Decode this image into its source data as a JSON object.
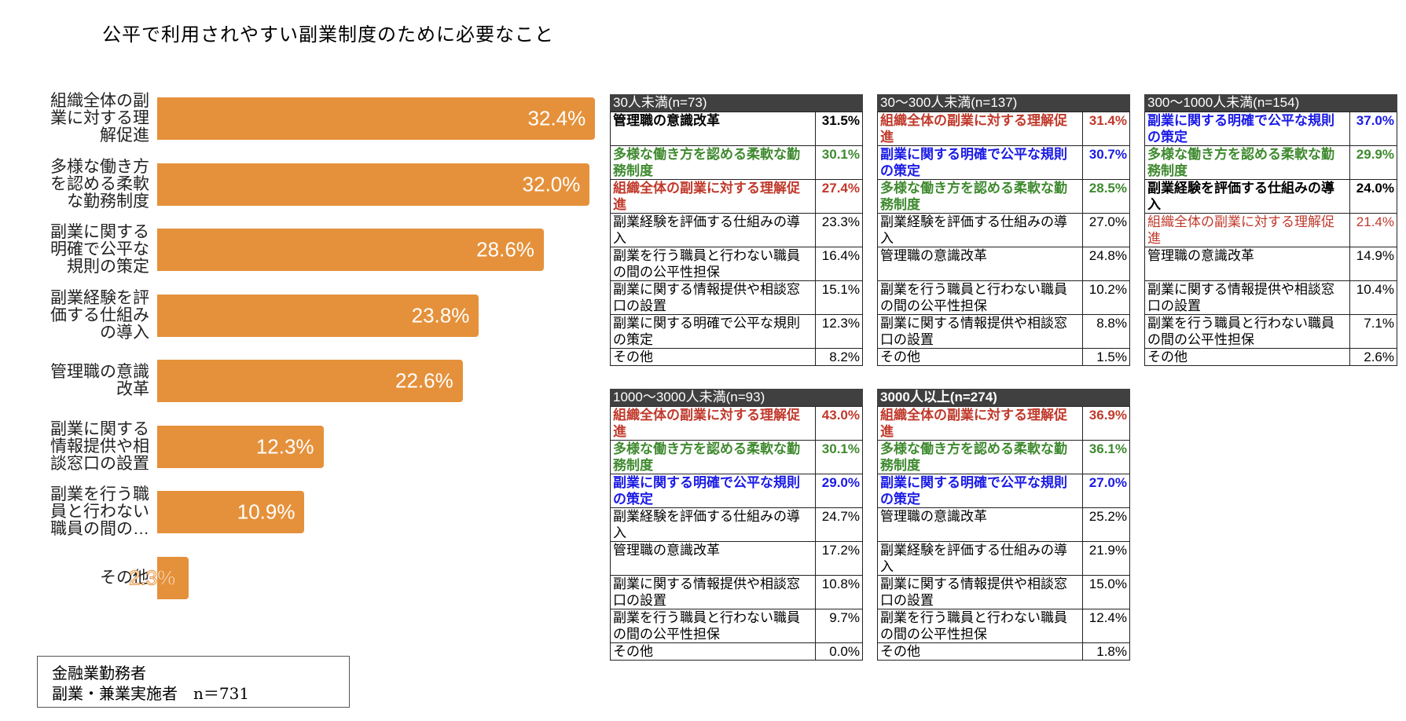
{
  "title": "公平で利用されやすい副業制度のために必要なこと",
  "legend": {
    "line1": "金融業勤務者",
    "line2": "副業・兼業実施者　n＝731"
  },
  "colors": {
    "bar": "#e5913b",
    "header_bg": "#404040",
    "red": "#c0392b",
    "green": "#3f8a2f",
    "blue": "#1a1ae6"
  },
  "chart_data": {
    "type": "bar",
    "orientation": "horizontal",
    "title": "公平で利用されやすい副業制度のために必要なこと",
    "categories": [
      "組織全体の副業に対する理解促進",
      "多様な働き方を認める柔軟な勤務制度",
      "副業に関する明確で公平な規則の策定",
      "副業経験を評価する仕組みの導入",
      "管理職の意識改革",
      "副業に関する情報提供や相談窓口の設置",
      "副業を行う職員と行わない職員の間の…",
      "その他"
    ],
    "values": [
      32.4,
      32.0,
      28.6,
      23.8,
      22.6,
      12.3,
      10.9,
      2.3
    ],
    "value_labels": [
      "32.4%",
      "32.0%",
      "28.6%",
      "23.8%",
      "22.6%",
      "12.3%",
      "10.9%",
      "2.3%"
    ],
    "axis_labels": [
      "組織全体の副業に対する理解促進",
      "多様な働き方を認める柔軟な勤務制度",
      "副業に関する明確で公平な規則の策定",
      "副業経験を評価する仕組みの導入",
      "管理職の意識改革",
      "副業に関する情報提供や相談窓口の設置",
      "副業を行う職員と行わない職員の間の…",
      "その他"
    ],
    "xlabel": "",
    "ylabel": "",
    "grid": false,
    "legend": "金融業勤務者 副業・兼業実施者 n＝731",
    "unit": "%",
    "tables": [
      {
        "header": "30人未満(n=73)",
        "rows": [
          {
            "label": "管理職の意識改革",
            "value": "31.5%",
            "style": "black-bold"
          },
          {
            "label": "多様な働き方を認める柔軟な勤務制度",
            "value": "30.1%",
            "style": "green"
          },
          {
            "label": "組織全体の副業に対する理解促進",
            "value": "27.4%",
            "style": "red"
          },
          {
            "label": "副業経験を評価する仕組みの導入",
            "value": "23.3%",
            "style": "normal"
          },
          {
            "label": "副業を行う職員と行わない職員の間の公平性担保",
            "value": "16.4%",
            "style": "normal"
          },
          {
            "label": "副業に関する情報提供や相談窓口の設置",
            "value": "15.1%",
            "style": "normal"
          },
          {
            "label": "副業に関する明確で公平な規則の策定",
            "value": "12.3%",
            "style": "normal"
          },
          {
            "label": "その他",
            "value": "8.2%",
            "style": "normal"
          }
        ]
      },
      {
        "header": "30〜300人未満(n=137)",
        "rows": [
          {
            "label": "組織全体の副業に対する理解促進",
            "value": "31.4%",
            "style": "red"
          },
          {
            "label": "副業に関する明確で公平な規則の策定",
            "value": "30.7%",
            "style": "blue"
          },
          {
            "label": "多様な働き方を認める柔軟な勤務制度",
            "value": "28.5%",
            "style": "green"
          },
          {
            "label": "副業経験を評価する仕組みの導入",
            "value": "27.0%",
            "style": "normal"
          },
          {
            "label": "管理職の意識改革",
            "value": "24.8%",
            "style": "normal"
          },
          {
            "label": "副業を行う職員と行わない職員の間の公平性担保",
            "value": "10.2%",
            "style": "normal"
          },
          {
            "label": "副業に関する情報提供や相談窓口の設置",
            "value": "8.8%",
            "style": "normal"
          },
          {
            "label": "その他",
            "value": "1.5%",
            "style": "normal"
          }
        ]
      },
      {
        "header": "300〜1000人未満(n=154)",
        "rows": [
          {
            "label": "副業に関する明確で公平な規則の策定",
            "value": "37.0%",
            "style": "blue"
          },
          {
            "label": "多様な働き方を認める柔軟な勤務制度",
            "value": "29.9%",
            "style": "green"
          },
          {
            "label": "副業経験を評価する仕組みの導入",
            "value": "24.0%",
            "style": "black-bold"
          },
          {
            "label": "組織全体の副業に対する理解促進",
            "value": "21.4%",
            "style": "red-normal"
          },
          {
            "label": "管理職の意識改革",
            "value": "14.9%",
            "style": "normal"
          },
          {
            "label": "副業に関する情報提供や相談窓口の設置",
            "value": "10.4%",
            "style": "normal"
          },
          {
            "label": "副業を行う職員と行わない職員の間の公平性担保",
            "value": "7.1%",
            "style": "normal"
          },
          {
            "label": "その他",
            "value": "2.6%",
            "style": "normal"
          }
        ]
      },
      {
        "header": "1000〜3000人未満(n=93)",
        "rows": [
          {
            "label": "組織全体の副業に対する理解促進",
            "value": "43.0%",
            "style": "red"
          },
          {
            "label": "多様な働き方を認める柔軟な勤務制度",
            "value": "30.1%",
            "style": "green"
          },
          {
            "label": "副業に関する明確で公平な規則の策定",
            "value": "29.0%",
            "style": "blue"
          },
          {
            "label": "副業経験を評価する仕組みの導入",
            "value": "24.7%",
            "style": "normal"
          },
          {
            "label": "管理職の意識改革",
            "value": "17.2%",
            "style": "normal"
          },
          {
            "label": "副業に関する情報提供や相談窓口の設置",
            "value": "10.8%",
            "style": "normal"
          },
          {
            "label": "副業を行う職員と行わない職員の間の公平性担保",
            "value": "9.7%",
            "style": "normal"
          },
          {
            "label": "その他",
            "value": "0.0%",
            "style": "normal"
          }
        ]
      },
      {
        "header": "3000人以上(n=274)",
        "rows": [
          {
            "label": "組織全体の副業に対する理解促進",
            "value": "36.9%",
            "style": "red"
          },
          {
            "label": "多様な働き方を認める柔軟な勤務制度",
            "value": "36.1%",
            "style": "green"
          },
          {
            "label": "副業に関する明確で公平な規則の策定",
            "value": "27.0%",
            "style": "blue"
          },
          {
            "label": "管理職の意識改革",
            "value": "25.2%",
            "style": "normal"
          },
          {
            "label": "副業経験を評価する仕組みの導入",
            "value": "21.9%",
            "style": "normal"
          },
          {
            "label": "副業に関する情報提供や相談窓口の設置",
            "value": "15.0%",
            "style": "normal"
          },
          {
            "label": "副業を行う職員と行わない職員の間の公平性担保",
            "value": "12.4%",
            "style": "normal"
          },
          {
            "label": "その他",
            "value": "1.8%",
            "style": "normal"
          }
        ]
      }
    ]
  },
  "bar_labels_wrapped": [
    [
      "組織全体の副",
      "業に対する理",
      "解促進"
    ],
    [
      "多様な働き方",
      "を認める柔軟",
      "な勤務制度"
    ],
    [
      "副業に関する",
      "明確で公平な",
      "規則の策定"
    ],
    [
      "副業経験を評",
      "価する仕組み",
      "の導入"
    ],
    [
      "管理職の意識",
      "改革"
    ],
    [
      "副業に関する",
      "情報提供や相",
      "談窓口の設置"
    ],
    [
      "副業を行う職",
      "員と行わない",
      "職員の間の…"
    ],
    [
      "その他"
    ]
  ]
}
